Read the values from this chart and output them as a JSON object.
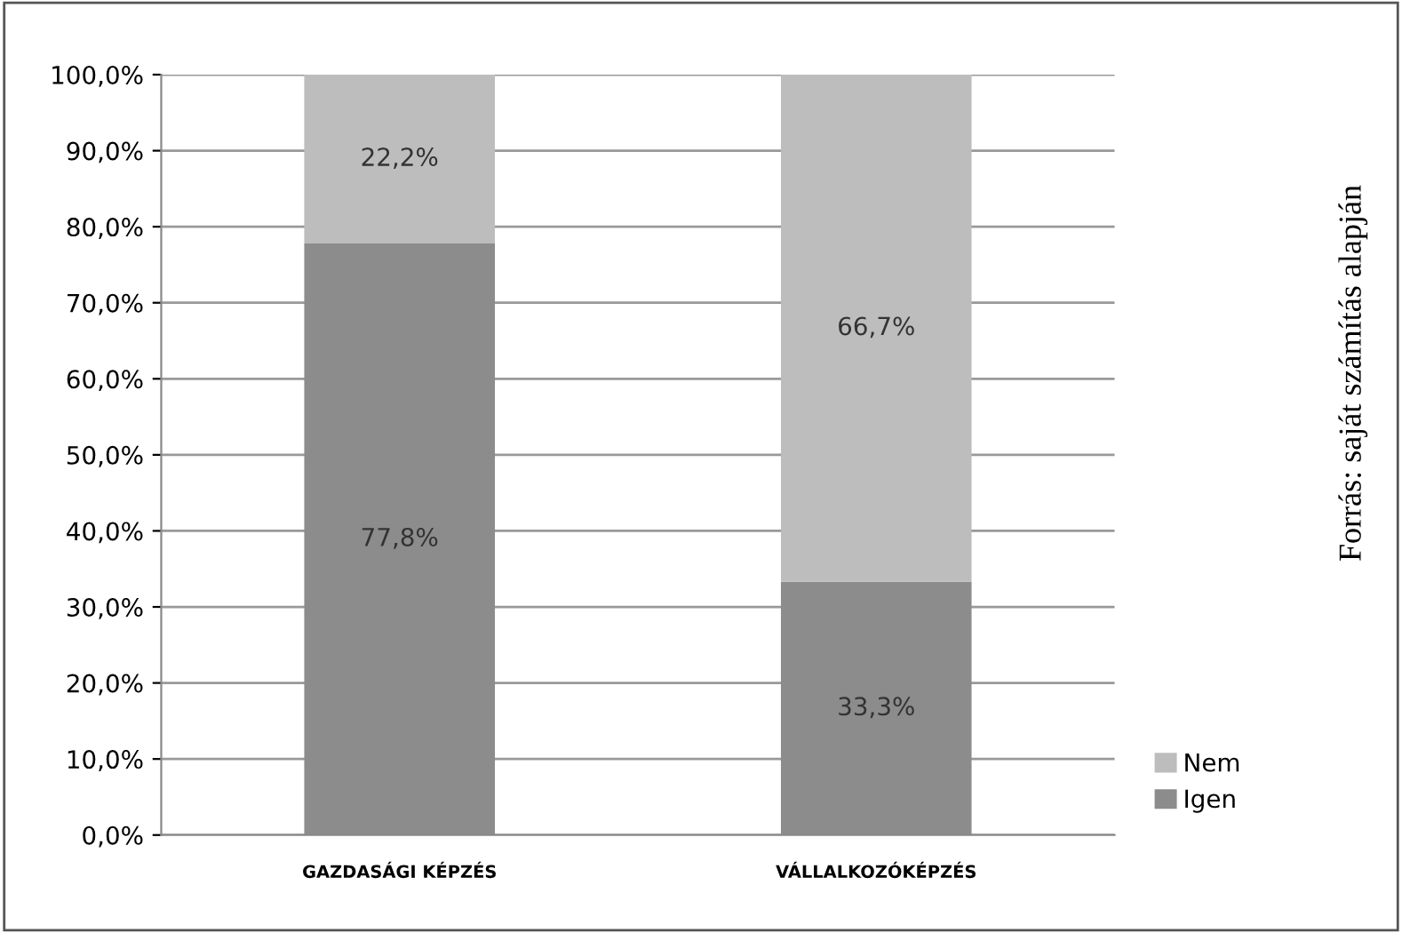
{
  "chart_data": {
    "type": "bar",
    "stacked": true,
    "categories": [
      "GAZDASÁGI KÉPZÉS",
      "VÁLLALKOZÓKÉPZÉS"
    ],
    "series": [
      {
        "name": "Igen",
        "color": "#8c8c8c",
        "values": [
          77.8,
          33.3
        ],
        "value_labels": [
          "77,8%",
          "33,3%"
        ]
      },
      {
        "name": "Nem",
        "color": "#bdbdbd",
        "values": [
          22.2,
          66.7
        ],
        "value_labels": [
          "22,2%",
          "66,7%"
        ]
      }
    ],
    "ylim": [
      0,
      100
    ],
    "yticks": [
      {
        "value": 0,
        "label": "0,0%"
      },
      {
        "value": 10,
        "label": "10,0%"
      },
      {
        "value": 20,
        "label": "20,0%"
      },
      {
        "value": 30,
        "label": "30,0%"
      },
      {
        "value": 40,
        "label": "40,0%"
      },
      {
        "value": 50,
        "label": "50,0%"
      },
      {
        "value": 60,
        "label": "60,0%"
      },
      {
        "value": 70,
        "label": "70,0%"
      },
      {
        "value": 80,
        "label": "80,0%"
      },
      {
        "value": 90,
        "label": "90,0%"
      },
      {
        "value": 100,
        "label": "100,0%"
      }
    ],
    "grid": "y",
    "legend": "right",
    "annotations": [
      "Forrás: saját számítás alapján"
    ]
  }
}
